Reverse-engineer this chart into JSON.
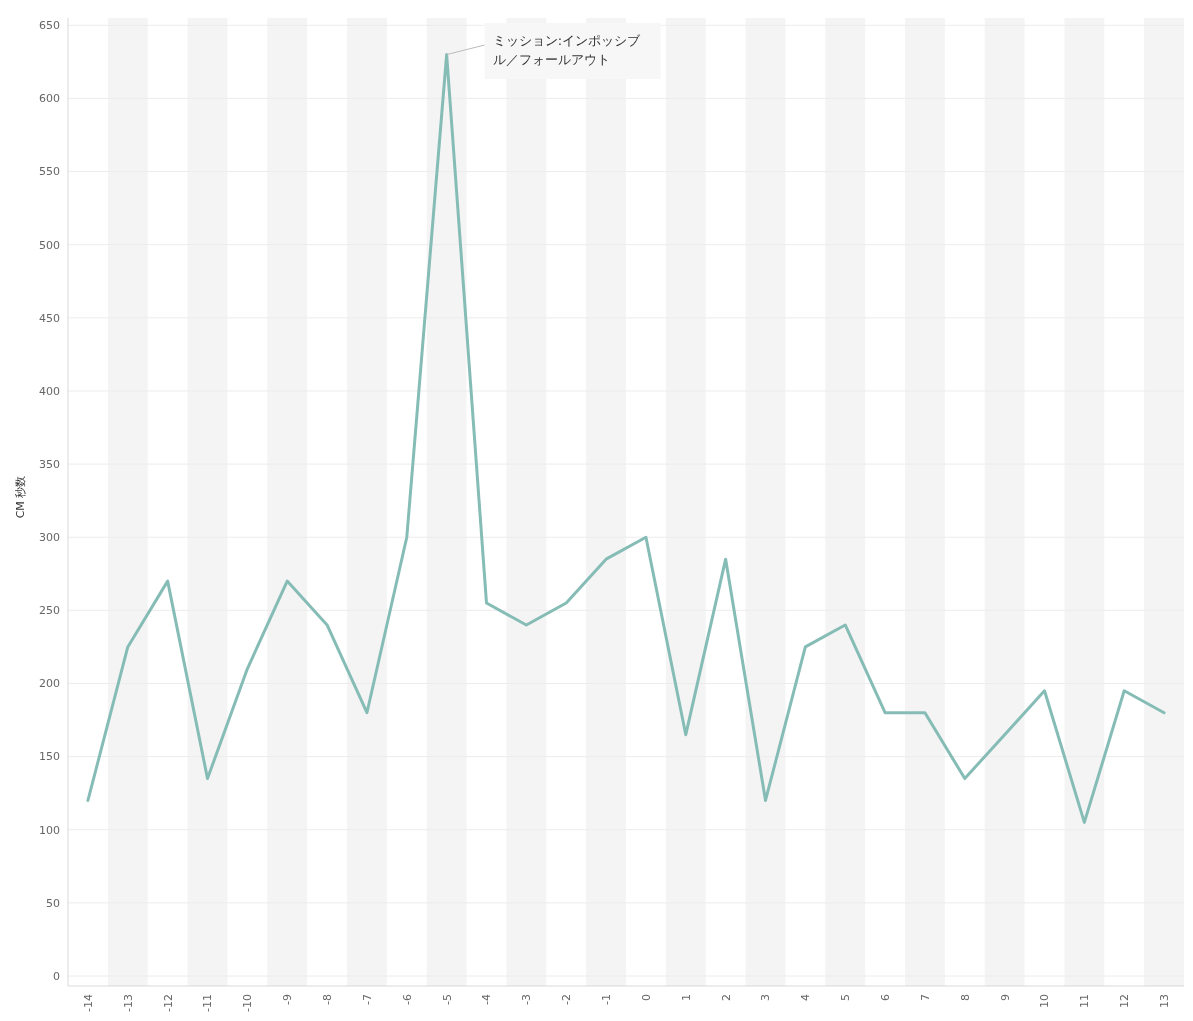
{
  "chart_data": {
    "type": "line",
    "ylabel": "CM 秒数",
    "categories": [
      "-14",
      "-13",
      "-12",
      "-11",
      "-10",
      "-9",
      "-8",
      "-7",
      "-6",
      "-5",
      "-4",
      "-3",
      "-2",
      "-1",
      "0",
      "1",
      "2",
      "3",
      "4",
      "5",
      "6",
      "7",
      "8",
      "9",
      "10",
      "11",
      "12",
      "13"
    ],
    "series": [
      {
        "color": "#86bcb6",
        "values": [
          120,
          225,
          270,
          135,
          210,
          270,
          240,
          180,
          300,
          630,
          255,
          240,
          255,
          285,
          300,
          165,
          285,
          120,
          225,
          240,
          180,
          180,
          135,
          165,
          195,
          105,
          195,
          180
        ]
      }
    ],
    "ylim": [
      0,
      655
    ],
    "yticks": [
      0,
      50,
      100,
      150,
      200,
      250,
      300,
      350,
      400,
      450,
      500,
      550,
      600,
      650
    ],
    "grid": "y",
    "marker": "none",
    "line_style": "solid",
    "annotations": [
      {
        "text": "ミッション:インポッシブル／フォールアウト",
        "x": "-5",
        "y": 630
      }
    ]
  }
}
